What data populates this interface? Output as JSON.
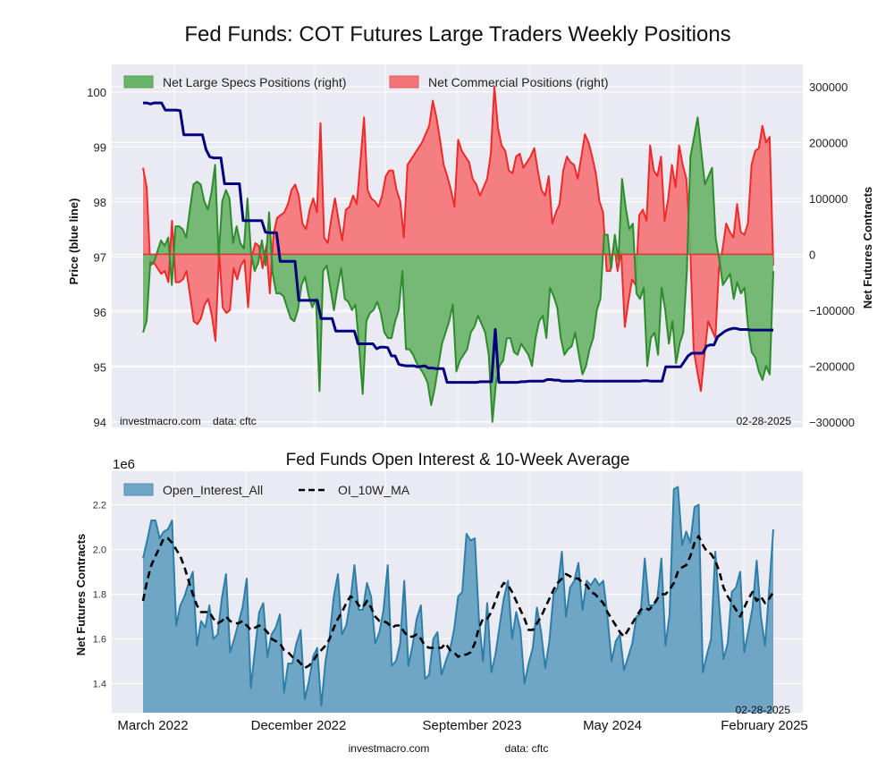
{
  "figure_title": "Fed Funds: COT Futures Large Traders Weekly Positions",
  "colors": {
    "specs": "#2e8b2e",
    "specs_fill": "#6ab46a",
    "commercial": "#ee2a2a",
    "commercial_fill": "#f47477",
    "price": "#00007f",
    "oi": "#2d7fa8",
    "oi_fill": "#6fa6c6",
    "ma": "#000000",
    "plot_bg": "#eaeaf2",
    "grid": "#ffffff"
  },
  "chart_data": [
    {
      "type": "area",
      "title": "Fed Funds: COT Futures Large Traders Weekly Positions",
      "ylabel_left": "Price (blue line)",
      "ylabel_right": "Net Futures Contracts",
      "ylim_left": [
        93.9,
        100.5
      ],
      "ylim_right": [
        -310000,
        340000
      ],
      "yticks_left": [
        "94",
        "95",
        "96",
        "97",
        "98",
        "99",
        "100"
      ],
      "yticks_right": [
        "-300000",
        "-200000",
        "-100000",
        "0",
        "100000",
        "200000",
        "300000"
      ],
      "grid": true,
      "legend_position": "top-left",
      "legend": [
        "Net Large Specs Positions (right)",
        "Net Commercial Positions (right)"
      ],
      "footer_left": "investmacro.com    data: cftc",
      "footer_right": "02-28-2025",
      "x_start": "2022-03",
      "x_end": "2025-02-28",
      "series": [
        {
          "name": "Net Large Specs Positions (right)",
          "values": [
            -140000,
            -120000,
            -15000,
            -15000,
            5000,
            25000,
            15000,
            30000,
            -55000,
            50000,
            50000,
            45000,
            30000,
            80000,
            125000,
            130000,
            125000,
            95000,
            80000,
            110000,
            160000,
            -5000,
            95000,
            115000,
            100000,
            20000,
            50000,
            20000,
            10000,
            100000,
            0,
            -30000,
            -15000,
            25000,
            -20000,
            75000,
            -35000,
            -70000,
            -70000,
            -75000,
            -95000,
            -115000,
            -120000,
            -100000,
            -55000,
            -40000,
            -75000,
            -95000,
            -80000,
            -245000,
            -30000,
            -20000,
            -60000,
            -100000,
            -60000,
            -25000,
            -80000,
            -85000,
            -100000,
            -90000,
            -165000,
            -250000,
            -120000,
            -105000,
            -100000,
            -85000,
            -105000,
            -140000,
            -150000,
            -150000,
            -120000,
            -100000,
            -30000,
            -170000,
            -170000,
            -180000,
            -195000,
            -205000,
            -215000,
            -230000,
            -270000,
            -240000,
            -200000,
            -160000,
            -140000,
            -120000,
            -90000,
            -210000,
            -190000,
            -180000,
            -170000,
            -140000,
            -130000,
            -110000,
            -125000,
            -140000,
            -180000,
            -300000,
            -230000,
            -200000,
            -190000,
            -150000,
            -150000,
            -175000,
            -180000,
            -160000,
            -170000,
            -180000,
            -200000,
            -150000,
            -120000,
            -110000,
            -150000,
            -60000,
            -75000,
            -95000,
            -150000,
            -180000,
            -170000,
            -165000,
            -140000,
            -180000,
            -215000,
            -200000,
            -170000,
            -150000,
            -100000,
            -80000,
            35000,
            35000,
            -25000,
            35000,
            -10000,
            135000,
            85000,
            45000,
            55000,
            -70000,
            -80000,
            -60000,
            -200000,
            -150000,
            -140000,
            -180000,
            -60000,
            -100000,
            -160000,
            -120000,
            -195000,
            -160000,
            -140000,
            -30000,
            175000,
            210000,
            245000,
            185000,
            125000,
            140000,
            155000,
            30000,
            -10000,
            -55000,
            -45000,
            -35000,
            -80000,
            -50000,
            -70000,
            -60000,
            -130000,
            -175000,
            -185000,
            -210000,
            -225000,
            -200000,
            -215000,
            -30000
          ]
        },
        {
          "name": "Net Commercial Positions (right)",
          "values": [
            155000,
            120000,
            -20000,
            -15000,
            -25000,
            -35000,
            -30000,
            -50000,
            60000,
            -50000,
            -50000,
            -45000,
            -30000,
            -75000,
            -120000,
            -125000,
            -115000,
            -90000,
            -80000,
            -110000,
            -155000,
            5000,
            -95000,
            -105000,
            -100000,
            -25000,
            -45000,
            -20000,
            -10000,
            -95000,
            -5000,
            20000,
            15000,
            -25000,
            15000,
            -70000,
            35000,
            65000,
            70000,
            75000,
            90000,
            115000,
            125000,
            105000,
            55000,
            45000,
            80000,
            100000,
            75000,
            235000,
            30000,
            20000,
            65000,
            100000,
            60000,
            25000,
            80000,
            85000,
            105000,
            90000,
            165000,
            245000,
            115000,
            100000,
            95000,
            85000,
            105000,
            140000,
            150000,
            150000,
            115000,
            95000,
            30000,
            160000,
            170000,
            180000,
            190000,
            200000,
            215000,
            230000,
            275000,
            245000,
            205000,
            160000,
            140000,
            115000,
            85000,
            205000,
            185000,
            175000,
            165000,
            135000,
            125000,
            105000,
            120000,
            135000,
            180000,
            300000,
            225000,
            195000,
            185000,
            150000,
            145000,
            175000,
            180000,
            155000,
            165000,
            175000,
            190000,
            150000,
            115000,
            105000,
            140000,
            55000,
            75000,
            90000,
            150000,
            175000,
            165000,
            160000,
            135000,
            175000,
            215000,
            200000,
            175000,
            145000,
            95000,
            75000,
            -30000,
            -30000,
            20000,
            -30000,
            5000,
            -130000,
            -85000,
            -45000,
            -55000,
            70000,
            80000,
            60000,
            195000,
            150000,
            140000,
            175000,
            60000,
            100000,
            160000,
            120000,
            195000,
            160000,
            135000,
            25000,
            -170000,
            -210000,
            -245000,
            -180000,
            -120000,
            -135000,
            -150000,
            -25000,
            10000,
            55000,
            40000,
            30000,
            90000,
            40000,
            35000,
            55000,
            160000,
            185000,
            190000,
            230000,
            200000,
            210000,
            -20000
          ]
        },
        {
          "name": "Price (blue line)",
          "axis": "left",
          "values": [
            99.8,
            99.8,
            99.78,
            99.8,
            99.8,
            99.8,
            99.67,
            99.67,
            99.67,
            99.67,
            99.66,
            99.22,
            99.22,
            99.22,
            99.22,
            99.22,
            99.22,
            98.95,
            98.82,
            98.8,
            98.8,
            98.8,
            98.33,
            98.33,
            98.33,
            98.33,
            98.33,
            97.66,
            97.66,
            97.66,
            97.66,
            97.66,
            97.66,
            97.45,
            97.44,
            97.44,
            97.44,
            96.92,
            96.92,
            96.92,
            96.92,
            96.92,
            96.21,
            96.21,
            96.21,
            96.21,
            96.21,
            96.21,
            95.88,
            95.88,
            95.88,
            95.88,
            95.65,
            95.65,
            95.65,
            95.65,
            95.65,
            95.65,
            95.42,
            95.42,
            95.42,
            95.42,
            95.42,
            95.33,
            95.36,
            95.36,
            95.35,
            95.2,
            95.2,
            95.05,
            95.03,
            95.02,
            95.02,
            95.02,
            95.0,
            95.01,
            95.02,
            94.98,
            94.98,
            94.97,
            94.97,
            94.97,
            94.72,
            94.72,
            94.72,
            94.72,
            94.72,
            94.72,
            94.72,
            94.72,
            94.72,
            94.73,
            94.73,
            94.73,
            94.73,
            95.68,
            94.72,
            94.72,
            94.72,
            94.72,
            94.72,
            94.72,
            94.73,
            94.73,
            94.74,
            94.74,
            94.74,
            94.74,
            94.74,
            94.77,
            94.77,
            94.76,
            94.76,
            94.74,
            94.74,
            94.74,
            94.74,
            94.75,
            94.75,
            94.74,
            94.74,
            94.74,
            94.74,
            94.74,
            94.74,
            94.74,
            94.74,
            94.74,
            94.74,
            94.74,
            94.74,
            94.74,
            94.74,
            94.74,
            94.74,
            94.75,
            94.75,
            94.74,
            94.74,
            94.74,
            94.74,
            95.0,
            95.0,
            95.0,
            95.0,
            95.0,
            95.1,
            95.2,
            95.25,
            95.25,
            95.25,
            95.25,
            95.38,
            95.4,
            95.4,
            95.55,
            95.6,
            95.65,
            95.68,
            95.7,
            95.7,
            95.68,
            95.68,
            95.68,
            95.67,
            95.67,
            95.67,
            95.67,
            95.67,
            95.67,
            95.67
          ]
        }
      ]
    },
    {
      "type": "area",
      "title": "Fed Funds Open Interest & 10-Week Average",
      "scale_label": "1e6",
      "ylabel": "Net Futures Contracts",
      "ylim": [
        1.27,
        2.35
      ],
      "yticks": [
        "1.4",
        "1.6",
        "1.8",
        "2.0",
        "2.2"
      ],
      "xticks": [
        "March 2022",
        "December 2022",
        "September 2023",
        "May 2024",
        "February 2025"
      ],
      "grid": true,
      "legend_position": "top-left",
      "legend": [
        "Open_Interest_All",
        "OI_10W_MA"
      ],
      "footer_right": "02-28-2025",
      "footer_center": [
        "investmacro.com",
        "data: cftc"
      ],
      "series": [
        {
          "name": "Open_Interest_All",
          "unit": "millions of contracts",
          "values": [
            1.96,
            2.04,
            2.13,
            2.13,
            2.05,
            2.08,
            2.09,
            2.13,
            1.66,
            1.75,
            1.79,
            1.85,
            1.9,
            1.57,
            1.68,
            1.65,
            1.75,
            1.6,
            1.62,
            1.78,
            1.89,
            1.54,
            1.6,
            1.67,
            1.74,
            1.87,
            1.38,
            1.55,
            1.72,
            1.76,
            1.52,
            1.62,
            1.65,
            1.71,
            1.36,
            1.49,
            1.49,
            1.58,
            1.64,
            1.33,
            1.41,
            1.52,
            1.56,
            1.3,
            1.5,
            1.61,
            1.79,
            1.89,
            1.62,
            1.66,
            1.77,
            1.93,
            1.73,
            1.73,
            1.85,
            1.79,
            1.58,
            1.63,
            1.73,
            1.93,
            1.48,
            1.5,
            1.58,
            1.86,
            1.48,
            1.57,
            1.69,
            1.75,
            1.42,
            1.44,
            1.6,
            1.63,
            1.44,
            1.5,
            1.55,
            1.64,
            1.79,
            1.81,
            2.07,
            2.04,
            2.05,
            1.69,
            1.5,
            1.76,
            1.45,
            1.53,
            1.66,
            1.78,
            1.86,
            1.6,
            1.72,
            1.64,
            1.4,
            1.49,
            1.56,
            1.74,
            1.63,
            1.47,
            1.59,
            1.8,
            1.83,
            1.99,
            1.7,
            1.83,
            1.86,
            1.94,
            1.73,
            1.86,
            1.84,
            1.87,
            1.84,
            1.86,
            1.7,
            1.5,
            1.59,
            1.62,
            1.46,
            1.52,
            1.58,
            1.7,
            1.71,
            1.96,
            1.75,
            1.75,
            1.77,
            1.96,
            1.57,
            1.71,
            2.27,
            2.28,
            2.02,
            2.08,
            2.03,
            2.19,
            2.2,
            1.45,
            1.53,
            1.6,
            1.99,
            1.74,
            1.51,
            1.58,
            1.81,
            1.83,
            1.9,
            1.54,
            1.64,
            1.74,
            1.95,
            1.7,
            1.57,
            1.82,
            2.09
          ]
        },
        {
          "name": "OI_10W_MA",
          "unit": "millions of contracts",
          "values": [
            1.77,
            1.86,
            1.93,
            1.97,
            2.01,
            2.05,
            2.05,
            2.03,
            2.0,
            1.97,
            1.92,
            1.86,
            1.8,
            1.75,
            1.72,
            1.72,
            1.72,
            1.69,
            1.67,
            1.68,
            1.7,
            1.68,
            1.67,
            1.67,
            1.68,
            1.66,
            1.64,
            1.65,
            1.66,
            1.65,
            1.63,
            1.6,
            1.59,
            1.58,
            1.55,
            1.54,
            1.52,
            1.51,
            1.49,
            1.47,
            1.48,
            1.5,
            1.53,
            1.55,
            1.57,
            1.6,
            1.65,
            1.69,
            1.72,
            1.76,
            1.79,
            1.78,
            1.75,
            1.74,
            1.77,
            1.74,
            1.7,
            1.68,
            1.68,
            1.67,
            1.65,
            1.66,
            1.66,
            1.63,
            1.61,
            1.61,
            1.62,
            1.6,
            1.57,
            1.56,
            1.56,
            1.56,
            1.56,
            1.58,
            1.55,
            1.54,
            1.52,
            1.53,
            1.53,
            1.54,
            1.58,
            1.65,
            1.69,
            1.69,
            1.72,
            1.77,
            1.82,
            1.85,
            1.84,
            1.81,
            1.77,
            1.73,
            1.69,
            1.64,
            1.64,
            1.67,
            1.7,
            1.74,
            1.78,
            1.82,
            1.85,
            1.87,
            1.89,
            1.88,
            1.87,
            1.87,
            1.85,
            1.84,
            1.81,
            1.8,
            1.78,
            1.76,
            1.72,
            1.69,
            1.66,
            1.63,
            1.61,
            1.64,
            1.67,
            1.7,
            1.73,
            1.74,
            1.73,
            1.75,
            1.78,
            1.8,
            1.8,
            1.82,
            1.85,
            1.9,
            1.92,
            1.93,
            1.97,
            2.03,
            2.06,
            2.02,
            1.99,
            1.98,
            1.95,
            1.9,
            1.83,
            1.79,
            1.76,
            1.73,
            1.7,
            1.74,
            1.78,
            1.81,
            1.77,
            1.79,
            1.76,
            1.78,
            1.81
          ]
        }
      ]
    }
  ]
}
